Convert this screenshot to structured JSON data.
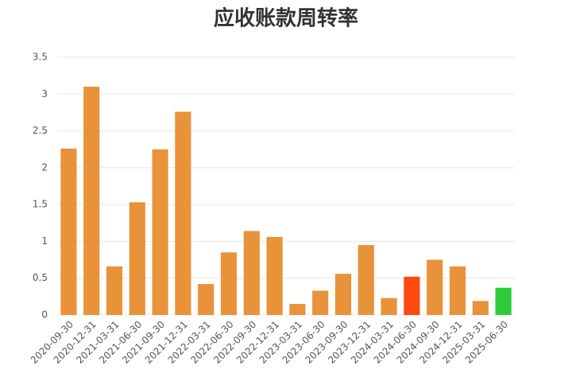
{
  "chart_data": {
    "type": "bar",
    "title": "应收账款周转率",
    "categories": [
      "2020-09-30",
      "2020-12-31",
      "2021-03-31",
      "2021-06-30",
      "2021-09-30",
      "2021-12-31",
      "2022-03-31",
      "2022-06-30",
      "2022-09-30",
      "2022-12-31",
      "2023-03-31",
      "2023-06-30",
      "2023-09-30",
      "2023-12-31",
      "2024-03-31",
      "2024-06-30",
      "2024-09-30",
      "2024-12-31",
      "2025-03-31",
      "2025-06-30"
    ],
    "values": [
      2.26,
      3.1,
      0.66,
      1.53,
      2.25,
      2.76,
      0.42,
      0.85,
      1.14,
      1.06,
      0.15,
      0.33,
      0.56,
      0.95,
      0.23,
      0.52,
      0.75,
      0.66,
      0.19,
      0.37
    ],
    "colors": [
      "#e8923a",
      "#e8923a",
      "#e8923a",
      "#e8923a",
      "#e8923a",
      "#e8923a",
      "#e8923a",
      "#e8923a",
      "#e8923a",
      "#e8923a",
      "#e8923a",
      "#e8923a",
      "#e8923a",
      "#e8923a",
      "#e8923a",
      "#ff4a10",
      "#e8923a",
      "#e8923a",
      "#e8923a",
      "#2ecc3a"
    ],
    "ylim": [
      0,
      3.5
    ],
    "yticks": [
      0,
      0.5,
      1,
      1.5,
      2,
      2.5,
      3,
      3.5
    ],
    "grid": true
  }
}
